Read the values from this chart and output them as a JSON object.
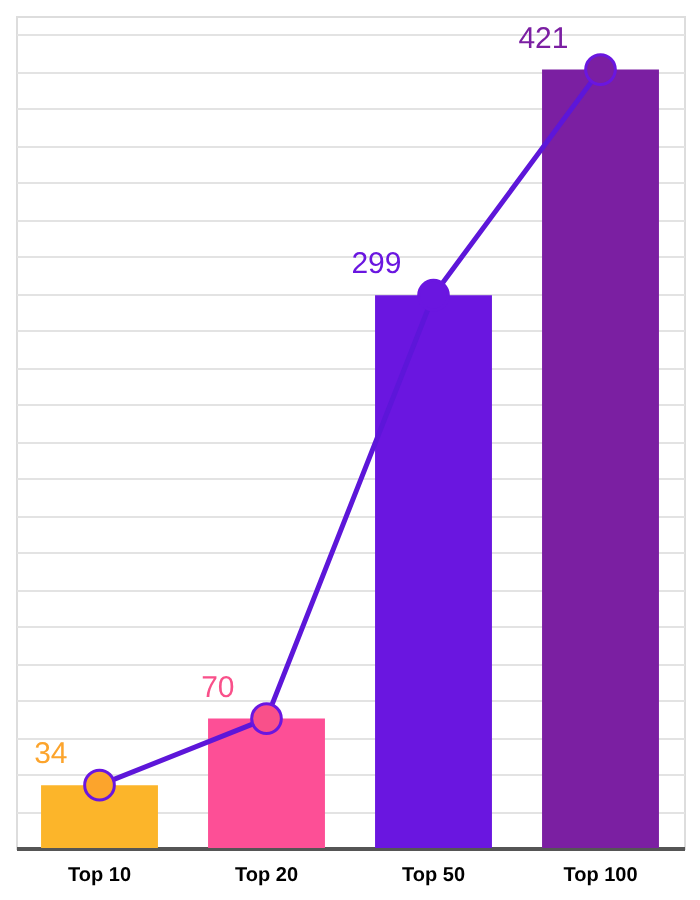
{
  "chart_data": {
    "type": "bar",
    "categories": [
      "Top 10",
      "Top 20",
      "Top 50",
      "Top 100"
    ],
    "series": [
      {
        "colors": [
          "#fcb52a",
          "#fd4f96",
          "#6a16e0",
          "#7b1fa2"
        ],
        "values": [
          34,
          70,
          299,
          421
        ]
      },
      {
        "type": "line",
        "color": "#5d16d9",
        "colors": [
          "#fca42c",
          "#f9508a",
          "#6a16e0",
          "#7b1fa2"
        ],
        "values": [
          34,
          70,
          299,
          421
        ],
        "value_labels": [
          "34",
          "70",
          "299",
          "421"
        ]
      }
    ],
    "grid": "y",
    "marker": "circle",
    "line_style": "solid",
    "tick_labels": "x"
  }
}
